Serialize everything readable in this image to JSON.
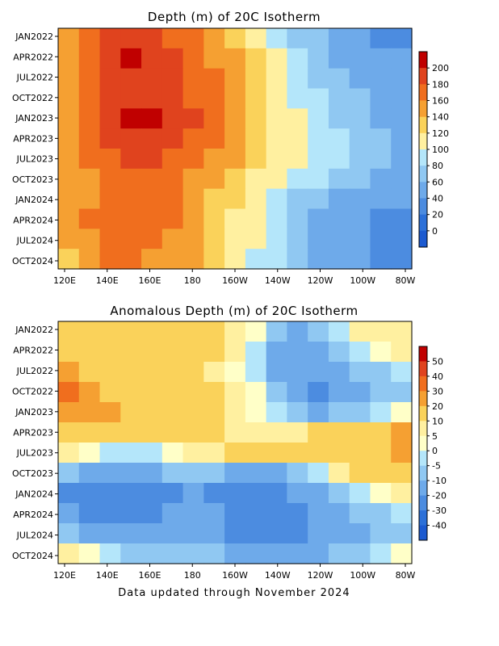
{
  "footer": "Data updated through November 2024",
  "chart_data": [
    {
      "type": "heatmap",
      "title": "Depth (m) of 20C Isotherm",
      "xlabel": "",
      "ylabel": "",
      "x_ticks": [
        "120E",
        "140E",
        "160E",
        "180",
        "160W",
        "140W",
        "120W",
        "100W",
        "80W"
      ],
      "x_range": [
        "120E",
        "80W"
      ],
      "y_ticks": [
        "JAN2022",
        "APR2022",
        "JUL2022",
        "OCT2022",
        "JAN2023",
        "APR2023",
        "JUL2023",
        "OCT2023",
        "JAN2024",
        "APR2024",
        "JUL2024",
        "OCT2024"
      ],
      "y_range": [
        "JAN2022",
        "NOV2024"
      ],
      "colorbar": {
        "labels": [
          "200",
          "180",
          "160",
          "140",
          "120",
          "100",
          "80",
          "60",
          "40",
          "20",
          "0"
        ],
        "colors": [
          "#c00000",
          "#e0431e",
          "#f06e1e",
          "#f5a032",
          "#fad25a",
          "#fff0a0",
          "#b4e6fa",
          "#90c8f2",
          "#6eaaea",
          "#4c8ce0",
          "#2c70d8",
          "#1c5ad0"
        ]
      },
      "x": [
        "120E",
        "130E",
        "140E",
        "150E",
        "160E",
        "170E",
        "180",
        "170W",
        "160W",
        "150W",
        "140W",
        "130W",
        "120W",
        "110W",
        "100W",
        "90W",
        "80W"
      ],
      "y": [
        "JAN2022",
        "APR2022",
        "JUL2022",
        "OCT2022",
        "JAN2023",
        "APR2023",
        "JUL2023",
        "OCT2023",
        "JAN2024",
        "APR2024",
        "JUL2024",
        "OCT2024"
      ],
      "z": [
        [
          140,
          160,
          180,
          185,
          180,
          175,
          165,
          150,
          135,
          115,
          95,
          75,
          60,
          45,
          40,
          35,
          30
        ],
        [
          145,
          165,
          190,
          200,
          195,
          185,
          170,
          155,
          140,
          120,
          100,
          80,
          65,
          50,
          45,
          40,
          40
        ],
        [
          150,
          170,
          185,
          195,
          195,
          185,
          175,
          160,
          145,
          125,
          105,
          85,
          70,
          60,
          50,
          45,
          40
        ],
        [
          150,
          170,
          185,
          190,
          190,
          185,
          175,
          165,
          150,
          130,
          110,
          95,
          80,
          70,
          60,
          50,
          45
        ],
        [
          155,
          175,
          195,
          205,
          205,
          190,
          180,
          165,
          150,
          130,
          110,
          100,
          85,
          75,
          65,
          55,
          45
        ],
        [
          150,
          170,
          185,
          195,
          195,
          185,
          175,
          160,
          145,
          125,
          110,
          100,
          90,
          80,
          70,
          60,
          50
        ],
        [
          145,
          165,
          175,
          180,
          180,
          175,
          165,
          155,
          140,
          125,
          110,
          100,
          90,
          80,
          70,
          60,
          55
        ],
        [
          140,
          155,
          165,
          170,
          170,
          165,
          155,
          145,
          130,
          115,
          100,
          90,
          80,
          70,
          60,
          55,
          50
        ],
        [
          140,
          150,
          160,
          165,
          165,
          160,
          150,
          135,
          120,
          105,
          90,
          75,
          65,
          55,
          50,
          45,
          40
        ],
        [
          145,
          160,
          175,
          170,
          165,
          160,
          150,
          135,
          115,
          100,
          85,
          70,
          55,
          45,
          40,
          35,
          30
        ],
        [
          140,
          155,
          165,
          165,
          160,
          155,
          145,
          130,
          115,
          100,
          85,
          70,
          55,
          45,
          40,
          35,
          30
        ],
        [
          135,
          150,
          160,
          160,
          155,
          150,
          140,
          125,
          110,
          95,
          80,
          65,
          55,
          45,
          40,
          35,
          35
        ]
      ]
    },
    {
      "type": "heatmap",
      "title": "Anomalous Depth (m) of 20C Isotherm",
      "xlabel": "",
      "ylabel": "",
      "x_ticks": [
        "120E",
        "140E",
        "160E",
        "180",
        "160W",
        "140W",
        "120W",
        "100W",
        "80W"
      ],
      "x_range": [
        "120E",
        "80W"
      ],
      "y_ticks": [
        "JAN2022",
        "APR2022",
        "JUL2022",
        "OCT2022",
        "JAN2023",
        "APR2023",
        "JUL2023",
        "OCT2023",
        "JAN2024",
        "APR2024",
        "JUL2024",
        "OCT2024"
      ],
      "y_range": [
        "JAN2022",
        "NOV2024"
      ],
      "colorbar": {
        "labels": [
          "50",
          "40",
          "30",
          "20",
          "10",
          "5",
          "0",
          "-5",
          "-10",
          "-20",
          "-30",
          "-40"
        ],
        "colors": [
          "#c00000",
          "#e0431e",
          "#f06e1e",
          "#f5a032",
          "#fad25a",
          "#fff0a0",
          "#ffffc8",
          "#b4e6fa",
          "#90c8f2",
          "#6eaaea",
          "#4c8ce0",
          "#2c70d8",
          "#1c5ad0"
        ]
      },
      "x": [
        "120E",
        "130E",
        "140E",
        "150E",
        "160E",
        "170E",
        "180",
        "170W",
        "160W",
        "150W",
        "140W",
        "130W",
        "120W",
        "110W",
        "100W",
        "90W",
        "80W"
      ],
      "y": [
        "JAN2022",
        "APR2022",
        "JUL2022",
        "OCT2022",
        "JAN2023",
        "APR2023",
        "JUL2023",
        "OCT2023",
        "JAN2024",
        "APR2024",
        "JUL2024",
        "OCT2024"
      ],
      "z": [
        [
          15,
          12,
          12,
          14,
          14,
          12,
          10,
          10,
          8,
          0,
          -8,
          -12,
          -10,
          -5,
          5,
          8,
          5
        ],
        [
          18,
          15,
          14,
          15,
          15,
          14,
          12,
          10,
          5,
          -5,
          -12,
          -15,
          -15,
          -10,
          -5,
          0,
          5
        ],
        [
          22,
          18,
          15,
          15,
          14,
          12,
          10,
          8,
          3,
          -3,
          -12,
          -18,
          -18,
          -15,
          -10,
          -8,
          -5
        ],
        [
          30,
          25,
          18,
          16,
          16,
          14,
          12,
          10,
          6,
          0,
          -8,
          -18,
          -22,
          -18,
          -15,
          -10,
          -8
        ],
        [
          28,
          24,
          20,
          18,
          18,
          14,
          12,
          10,
          5,
          2,
          -5,
          -10,
          -12,
          -10,
          -8,
          -5,
          0
        ],
        [
          18,
          16,
          14,
          12,
          12,
          10,
          10,
          10,
          8,
          5,
          5,
          8,
          10,
          12,
          14,
          18,
          22
        ],
        [
          5,
          2,
          -2,
          -5,
          -5,
          0,
          5,
          8,
          10,
          12,
          14,
          14,
          15,
          16,
          16,
          18,
          20
        ],
        [
          -10,
          -15,
          -18,
          -15,
          -12,
          -10,
          -8,
          -10,
          -15,
          -18,
          -15,
          -10,
          -5,
          5,
          10,
          12,
          15
        ],
        [
          -25,
          -30,
          -30,
          -28,
          -25,
          -22,
          -20,
          -22,
          -25,
          -28,
          -25,
          -20,
          -15,
          -10,
          -5,
          0,
          5
        ],
        [
          -20,
          -25,
          -25,
          -25,
          -22,
          -20,
          -18,
          -20,
          -22,
          -25,
          -28,
          -25,
          -20,
          -15,
          -10,
          -10,
          -5
        ],
        [
          -10,
          -12,
          -15,
          -18,
          -20,
          -18,
          -15,
          -18,
          -22,
          -25,
          -25,
          -22,
          -20,
          -15,
          -12,
          -10,
          -8
        ],
        [
          5,
          0,
          -5,
          -8,
          -10,
          -8,
          -8,
          -10,
          -12,
          -15,
          -18,
          -15,
          -12,
          -10,
          -8,
          -5,
          0
        ]
      ]
    }
  ]
}
